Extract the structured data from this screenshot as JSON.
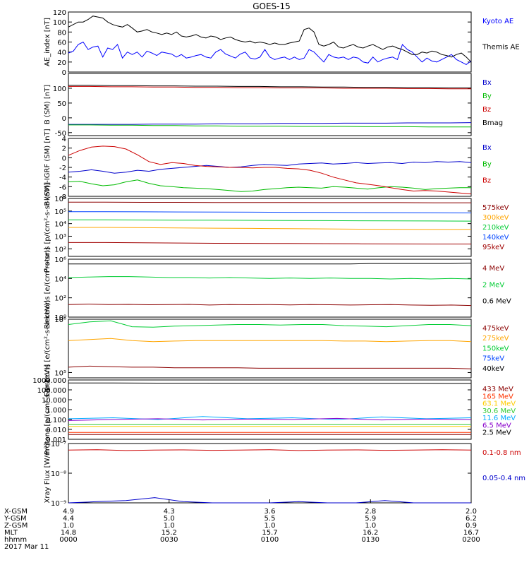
{
  "title": "GOES-15",
  "chart_data": [
    {
      "type": "line",
      "ylabel": "AE_index [nT]",
      "ylim": [
        0,
        120
      ],
      "yticks": [
        0,
        20,
        40,
        60,
        80,
        100,
        120
      ],
      "log": false,
      "series": [
        {
          "name": "Kyoto AE",
          "color": "#0000ff",
          "values": [
            38,
            42,
            55,
            60,
            45,
            50,
            52,
            30,
            48,
            45,
            55,
            28,
            40,
            35,
            40,
            30,
            42,
            38,
            33,
            40,
            38,
            36,
            30,
            35,
            28,
            30,
            33,
            35,
            30,
            28,
            40,
            45,
            36,
            32,
            28,
            36,
            40,
            28,
            26,
            30,
            45,
            30,
            25,
            28,
            30,
            25,
            30,
            25,
            28,
            45,
            40,
            30,
            20,
            35,
            30,
            28,
            30,
            25,
            30,
            28,
            20,
            18,
            30,
            20,
            25,
            28,
            30,
            25,
            55,
            45,
            40,
            30,
            20,
            28,
            22,
            20,
            25,
            30,
            35,
            25,
            20,
            15,
            22
          ]
        },
        {
          "name": "Themis AE",
          "color": "#000000",
          "values": [
            90,
            95,
            100,
            100,
            105,
            112,
            110,
            108,
            100,
            95,
            92,
            90,
            95,
            88,
            80,
            82,
            85,
            80,
            78,
            75,
            78,
            75,
            80,
            72,
            70,
            72,
            75,
            70,
            68,
            72,
            70,
            65,
            68,
            70,
            65,
            62,
            60,
            62,
            58,
            60,
            58,
            55,
            58,
            55,
            55,
            58,
            60,
            62,
            85,
            88,
            80,
            55,
            52,
            55,
            60,
            50,
            48,
            52,
            55,
            50,
            48,
            52,
            55,
            50,
            45,
            50,
            52,
            48,
            45,
            40,
            35,
            35,
            40,
            38,
            42,
            40,
            35,
            33,
            30,
            35,
            38,
            30,
            20
          ]
        }
      ]
    },
    {
      "type": "line",
      "ylabel": "B (SM) [nT]",
      "ylim": [
        -60,
        150
      ],
      "yticks": [
        -50,
        0,
        50,
        100
      ],
      "log": false,
      "series": [
        {
          "name": "Bx",
          "color": "#0000cc",
          "values": [
            -22,
            -22,
            -22,
            -22,
            -21,
            -21,
            -21,
            -20,
            -20,
            -20,
            -19,
            -19,
            -19,
            -18,
            -18,
            -18,
            -17,
            -17,
            -17,
            -16
          ]
        },
        {
          "name": "By",
          "color": "#00bb00",
          "values": [
            -24,
            -24,
            -25,
            -25,
            -26,
            -26,
            -27,
            -27,
            -28,
            -28,
            -28,
            -29,
            -29,
            -29,
            -30,
            -30,
            -30,
            -31,
            -31,
            -31
          ]
        },
        {
          "name": "Bz",
          "color": "#cc0000",
          "values": [
            106,
            106,
            105,
            105,
            104,
            104,
            103,
            103,
            102,
            102,
            101,
            101,
            101,
            100,
            100,
            100,
            99,
            99,
            98,
            98
          ]
        },
        {
          "name": "Bmag",
          "color": "#000000",
          "values": [
            110,
            110,
            109,
            109,
            108,
            108,
            107,
            107,
            106,
            106,
            105,
            105,
            104,
            104,
            103,
            103,
            102,
            102,
            101,
            101
          ]
        }
      ]
    },
    {
      "type": "line",
      "ylabel": "B (SM)-IGRF (SM) [nT]",
      "ylim": [
        -8,
        4
      ],
      "yticks": [
        -8,
        -6,
        -4,
        -2,
        0,
        2,
        4
      ],
      "log": false,
      "series": [
        {
          "name": "Bx",
          "color": "#0000cc",
          "values": [
            -3.0,
            -2.8,
            -2.5,
            -2.8,
            -3.2,
            -3.0,
            -2.6,
            -2.8,
            -2.4,
            -2.2,
            -2.0,
            -1.8,
            -1.6,
            -1.8,
            -2.0,
            -1.9,
            -1.6,
            -1.4,
            -1.5,
            -1.6,
            -1.3,
            -1.2,
            -1.1,
            -1.3,
            -1.2,
            -1.0,
            -1.2,
            -1.1,
            -1.0,
            -1.2,
            -0.9,
            -1.0,
            -0.8,
            -0.9,
            -0.8,
            -1.0
          ]
        },
        {
          "name": "By",
          "color": "#00bb00",
          "values": [
            -5.0,
            -4.9,
            -5.4,
            -5.8,
            -5.6,
            -5.0,
            -4.6,
            -5.3,
            -5.8,
            -6.0,
            -6.2,
            -6.3,
            -6.4,
            -6.6,
            -6.8,
            -7.0,
            -6.9,
            -6.6,
            -6.4,
            -6.2,
            -6.1,
            -6.2,
            -6.3,
            -6.0,
            -6.1,
            -6.3,
            -6.5,
            -6.2,
            -6.0,
            -6.1,
            -6.3,
            -6.6,
            -6.4,
            -6.3,
            -6.2,
            -6.2
          ]
        },
        {
          "name": "Bz",
          "color": "#cc0000",
          "values": [
            0.5,
            1.5,
            2.2,
            2.4,
            2.3,
            1.8,
            0.6,
            -0.8,
            -1.4,
            -1.0,
            -1.2,
            -1.6,
            -1.8,
            -1.9,
            -2.0,
            -2.0,
            -2.1,
            -2.0,
            -2.0,
            -2.2,
            -2.3,
            -2.6,
            -3.2,
            -4.0,
            -4.6,
            -5.2,
            -5.5,
            -5.8,
            -6.2,
            -6.6,
            -6.9,
            -6.8,
            -6.9,
            -7.1,
            -7.3,
            -7.5
          ]
        }
      ]
    },
    {
      "type": "line",
      "ylabel": "Protons [p/(cm²-s-sr-keV)]",
      "ylim": [
        1.4,
        6
      ],
      "yticks": [
        2,
        3,
        4,
        5,
        6
      ],
      "ytick_labels": [
        "10²",
        "10³",
        "10⁴",
        "10⁵",
        "10⁶"
      ],
      "log": true,
      "series": [
        {
          "name": "575keV",
          "color": "#8b0000",
          "values": [
            5.7,
            5.7,
            5.69,
            5.69,
            5.68,
            5.68,
            5.68,
            5.67,
            5.67,
            5.67,
            5.66,
            5.66
          ]
        },
        {
          "name": "300keV",
          "color": "#ffa500",
          "values": [
            3.7,
            3.7,
            3.68,
            3.66,
            3.64,
            3.62,
            3.6,
            3.58,
            3.56,
            3.55,
            3.54,
            3.55
          ]
        },
        {
          "name": "210keV",
          "color": "#00cc33",
          "values": [
            4.3,
            4.3,
            4.29,
            4.28,
            4.27,
            4.26,
            4.25,
            4.24,
            4.23,
            4.22,
            4.21,
            4.2
          ]
        },
        {
          "name": "140keV",
          "color": "#0044ff",
          "values": [
            4.95,
            4.95,
            4.94,
            4.93,
            4.92,
            4.91,
            4.9,
            4.89,
            4.88,
            4.87,
            4.86,
            4.85
          ]
        },
        {
          "name": "95keV",
          "color": "#a00000",
          "values": [
            2.5,
            2.5,
            2.48,
            2.46,
            2.44,
            2.43,
            2.42,
            2.41,
            2.4,
            2.39,
            2.38,
            2.38
          ]
        }
      ]
    },
    {
      "type": "line",
      "ylabel": "Electrons [e/(cm²-s-sr)]",
      "ylim": [
        0,
        6
      ],
      "yticks": [
        0,
        2,
        4,
        6
      ],
      "ytick_labels": [
        "10⁰",
        "10²",
        "10⁴",
        "10⁶"
      ],
      "log": true,
      "series": [
        {
          "name": "4 MeV",
          "color": "#8b0000",
          "values": [
            1.3,
            1.35,
            1.3,
            1.32,
            1.28,
            1.3,
            1.32,
            1.25,
            1.3,
            1.28,
            1.3,
            1.26,
            1.3,
            1.28,
            1.25,
            1.28,
            1.3,
            1.25,
            1.22,
            1.25,
            1.2
          ]
        },
        {
          "name": "2 MeV",
          "color": "#00cc33",
          "values": [
            4.1,
            4.15,
            4.2,
            4.2,
            4.15,
            4.1,
            4.1,
            4.05,
            4.1,
            4.05,
            4.0,
            4.05,
            4.0,
            4.05,
            4.0,
            4.0,
            3.95,
            4.0,
            3.95,
            4.0,
            3.95
          ]
        },
        {
          "name": "0.6 MeV",
          "color": "#000000",
          "values": [
            5.5,
            5.5,
            5.5,
            5.5,
            5.5,
            5.5,
            5.5,
            5.5,
            5.5,
            5.5,
            5.5,
            5.5,
            5.5,
            5.5,
            5.5,
            5.55,
            5.55,
            5.55,
            5.55,
            5.55,
            5.6
          ]
        }
      ]
    },
    {
      "type": "line",
      "ylabel": "Electrons [e/(cm²-s-sr-keV)]",
      "ylim": [
        4.9,
        6
      ],
      "yticks": [
        5,
        6
      ],
      "ytick_labels": [
        "10⁵",
        "10⁶"
      ],
      "log": true,
      "series": [
        {
          "name": "475keV",
          "color": "#8b0000",
          "values": [
            5.1,
            5.12,
            5.11,
            5.1,
            5.1,
            5.09,
            5.09,
            5.09,
            5.09,
            5.08,
            5.08,
            5.08,
            5.08,
            5.08,
            5.08,
            5.08,
            5.08,
            5.08,
            5.08,
            5.07
          ]
        },
        {
          "name": "275keV",
          "color": "#ffa500",
          "values": [
            5.6,
            5.62,
            5.64,
            5.6,
            5.58,
            5.59,
            5.6,
            5.6,
            5.6,
            5.6,
            5.6,
            5.6,
            5.6,
            5.59,
            5.59,
            5.58,
            5.59,
            5.6,
            5.6,
            5.58
          ]
        },
        {
          "name": "150keV",
          "color": "#00cc33",
          "values": [
            5.9,
            5.95,
            5.97,
            5.86,
            5.85,
            5.87,
            5.88,
            5.89,
            5.9,
            5.9,
            5.89,
            5.9,
            5.9,
            5.88,
            5.87,
            5.86,
            5.88,
            5.9,
            5.9,
            5.88
          ]
        },
        {
          "name": "75keV",
          "color": "#0044ff",
          "values": []
        },
        {
          "name": "40keV",
          "color": "#000000",
          "values": []
        }
      ]
    },
    {
      "type": "line",
      "ylabel": "Protons [p/(cm²-s-sr-keV)]",
      "ylim": [
        0.001,
        1000
      ],
      "yticks": [
        0.001,
        0.01,
        0.1,
        1,
        10,
        100,
        1000
      ],
      "ytick_labels": [
        "0.001",
        "0.010",
        "0.100",
        "1.000",
        "10.000",
        "100.000",
        "1000.000"
      ],
      "log": true,
      "series": [
        {
          "name": "433 MeV",
          "color": "#8b0000",
          "values": [
            0.003,
            0.003,
            0.003,
            0.003,
            0.003,
            0.003,
            0.003,
            0.003,
            0.003,
            0.003
          ]
        },
        {
          "name": "165 MeV",
          "color": "#ff3300",
          "values": [
            0.005,
            0.005,
            0.005,
            0.005,
            0.005,
            0.005,
            0.005,
            0.005,
            0.005,
            0.005
          ]
        },
        {
          "name": "63.1 MeV",
          "color": "#ffcc00",
          "values": [
            0.02,
            0.02,
            0.02,
            0.02,
            0.02,
            0.02,
            0.02,
            0.02,
            0.02,
            0.02
          ]
        },
        {
          "name": "30.6 MeV",
          "color": "#33cc33",
          "values": [
            0.03,
            0.03,
            0.03,
            0.03,
            0.03,
            0.03,
            0.03,
            0.03,
            0.03,
            0.03
          ]
        },
        {
          "name": "11.6 MeV",
          "color": "#00aaff",
          "values": [
            0.12,
            0.15,
            0.1,
            0.2,
            0.12,
            0.15,
            0.1,
            0.18,
            0.12,
            0.15
          ]
        },
        {
          "name": "6.5 MeV",
          "color": "#8800cc",
          "values": [
            0.08,
            0.1,
            0.12,
            0.09,
            0.11,
            0.1,
            0.13,
            0.09,
            0.11,
            0.1
          ]
        },
        {
          "name": "2.5 MeV",
          "color": "#000000",
          "values": [
            500,
            500,
            480,
            480,
            470,
            470,
            460,
            460,
            455,
            450
          ]
        }
      ]
    },
    {
      "type": "line",
      "ylabel": "Xray Flux [W/m²]",
      "ylim": [
        1e-09,
        1e-07
      ],
      "yticks": [
        1e-09,
        1e-08,
        1e-07
      ],
      "ytick_labels": [
        "10⁻⁹",
        "10⁻⁸",
        "10⁻⁷"
      ],
      "log": true,
      "series": [
        {
          "name": "0.1-0.8 nm",
          "color": "#cc0000",
          "values": [
            6e-08,
            6.2e-08,
            5.8e-08,
            6e-08,
            6.1e-08,
            5.9e-08,
            6e-08,
            6.2e-08,
            5.8e-08,
            6e-08,
            6.1e-08,
            5.9e-08,
            6e-08,
            6.2e-08,
            6e-08
          ]
        },
        {
          "name": "0.05-0.4 nm",
          "color": "#0000cc",
          "values": [
            1e-09,
            1.1e-09,
            1.2e-09,
            1.5e-09,
            1.1e-09,
            1e-09,
            1e-09,
            1e-09,
            1.1e-09,
            1e-09,
            1e-09,
            1.2e-09,
            1e-09,
            1e-09,
            1e-09
          ]
        }
      ]
    }
  ],
  "footer": {
    "rows": [
      {
        "label": "X-GSM",
        "values": [
          "4.9",
          "4.3",
          "3.6",
          "2.8",
          "2.0"
        ]
      },
      {
        "label": "Y-GSM",
        "values": [
          "4.4",
          "5.0",
          "5.5",
          "5.9",
          "6.2"
        ]
      },
      {
        "label": "Z-GSM",
        "values": [
          "1.0",
          "1.0",
          "1.0",
          "1.0",
          "0.9"
        ]
      },
      {
        "label": "MLT",
        "values": [
          "14.8",
          "15.2",
          "15.7",
          "16.2",
          "16.7"
        ]
      },
      {
        "label": "hhmm",
        "values": [
          "0000",
          "0030",
          "0100",
          "0130",
          "0200"
        ]
      }
    ],
    "date": "2017 Mar 11"
  }
}
